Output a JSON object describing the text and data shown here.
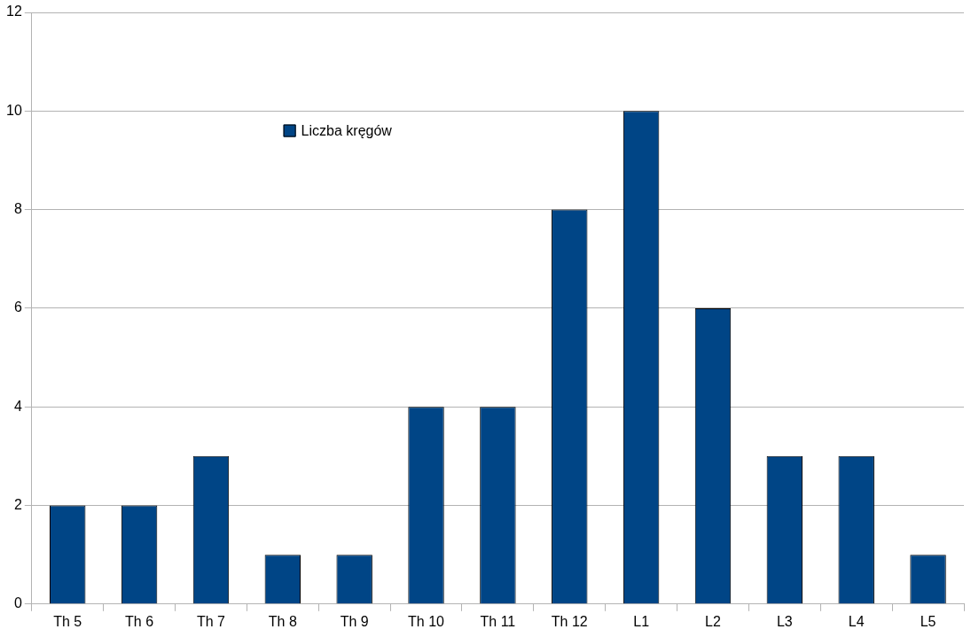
{
  "chart_data": {
    "type": "bar",
    "categories": [
      "Th 5",
      "Th 6",
      "Th 7",
      "Th 8",
      "Th 9",
      "Th 10",
      "Th 11",
      "Th 12",
      "L1",
      "L2",
      "L3",
      "L4",
      "L5"
    ],
    "series": [
      {
        "name": "Liczba kręgów",
        "color": "#004586",
        "values": [
          2,
          2,
          3,
          1,
          1,
          4,
          4,
          8,
          10,
          6,
          3,
          3,
          1
        ]
      }
    ],
    "ylim": [
      0,
      12
    ],
    "yticks": [
      0,
      2,
      4,
      6,
      8,
      10,
      12
    ],
    "grid": "y",
    "legend": "top left"
  }
}
